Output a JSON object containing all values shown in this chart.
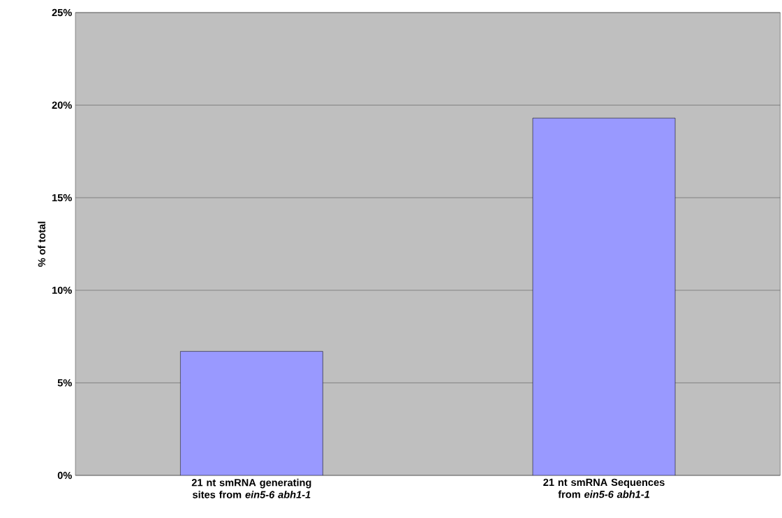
{
  "chart_data": {
    "type": "bar",
    "ylabel": "% of total",
    "categories": [
      "21 nt smRNA generating sites from *ein5-6 abh1-1*",
      "21 nt smRNA Sequences from *ein5-6 abh1-1*"
    ],
    "values": [
      6.7,
      19.3
    ],
    "color": "#9999ff",
    "ylim": [
      0,
      25
    ],
    "yticks": [
      {
        "value": 0,
        "label": "0%"
      },
      {
        "value": 5,
        "label": "5%"
      },
      {
        "value": 10,
        "label": "10%"
      },
      {
        "value": 15,
        "label": "15%"
      },
      {
        "value": 20,
        "label": "20%"
      },
      {
        "value": 25,
        "label": "25%"
      }
    ],
    "grid": "y"
  }
}
